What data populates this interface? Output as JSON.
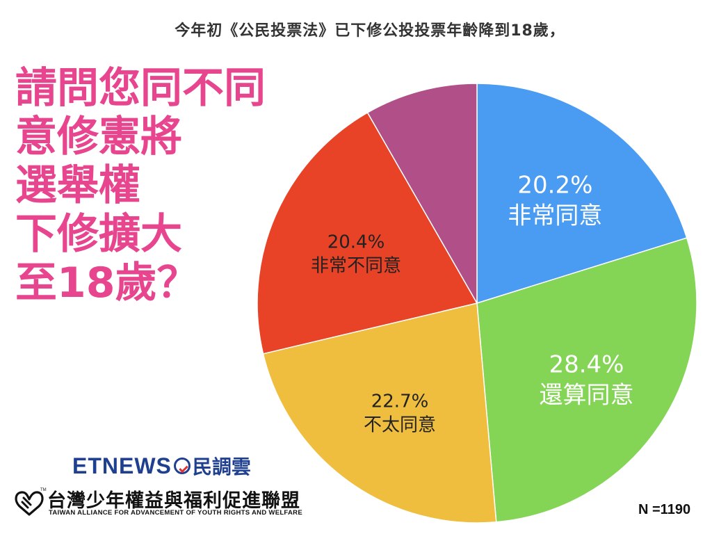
{
  "caption": "今年初《公民投票法》已下修公投投票年齡降到18歲，",
  "question_lines": [
    "請問您同不同",
    "意修憲將",
    "選舉權",
    "下修擴大",
    "至18歲？"
  ],
  "sample": "N =1190",
  "logos": {
    "etnews_text": "ETNEWS",
    "etnews_cn": "民調雲",
    "alliance_cn": "台灣少年權益與福利促進聯盟",
    "alliance_en": "TAIWAN ALLIANCE FOR ADVANCEMENT OF YOUTH RIGHTS AND WELFARE",
    "alliance_tm": "TM"
  },
  "chart_data": {
    "type": "pie",
    "start": "12 o'clock, clockwise",
    "slices": [
      {
        "label": "非常同意",
        "value": 20.2,
        "value_label": "20.2%",
        "color": "#4a9cf3",
        "text_color": "#ffffff"
      },
      {
        "label": "還算同意",
        "value": 28.4,
        "value_label": "28.4%",
        "color": "#84d455",
        "text_color": "#ffffff"
      },
      {
        "label": "不太同意",
        "value": 22.7,
        "value_label": "22.7%",
        "color": "#efbe3e",
        "text_color": "#222222"
      },
      {
        "label": "非常不同意",
        "value": 20.4,
        "value_label": "20.4%",
        "color": "#e84227",
        "text_color": "#222222"
      },
      {
        "label": "",
        "value": 8.3,
        "value_label": "",
        "color": "#b04f88",
        "text_color": "#ffffff"
      }
    ]
  }
}
